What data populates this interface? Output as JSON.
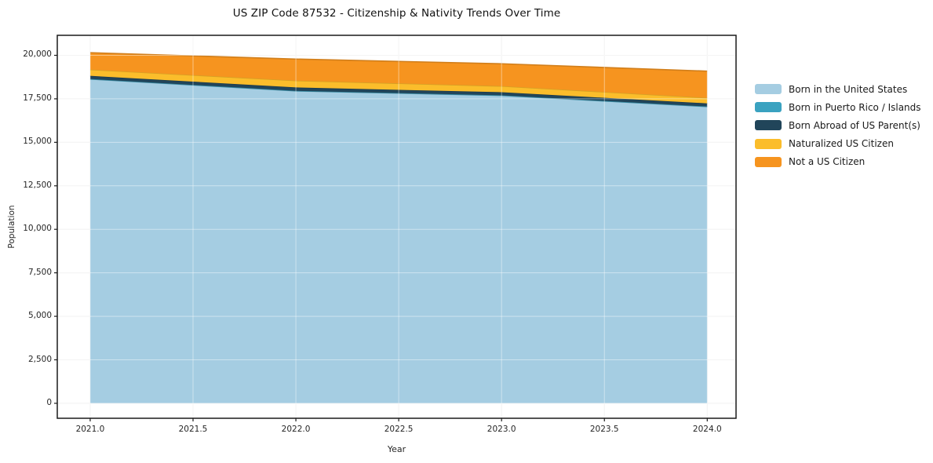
{
  "title": "US ZIP Code 87532 - Citizenship & Nativity Trends Over Time",
  "axes": {
    "xlabel": "Year",
    "ylabel": "Population",
    "xtick_labels": [
      "2021.0",
      "2021.5",
      "2022.0",
      "2022.5",
      "2023.0",
      "2023.5",
      "2024.0"
    ],
    "xtick_values": [
      2021.0,
      2021.5,
      2022.0,
      2022.5,
      2023.0,
      2023.5,
      2024.0
    ],
    "ytick_labels": [
      "0",
      "2,500",
      "5,000",
      "7,500",
      "10,000",
      "12,500",
      "15,000",
      "17,500",
      "20,000"
    ],
    "ytick_values": [
      0,
      2500,
      5000,
      7500,
      10000,
      12500,
      15000,
      17500,
      20000
    ]
  },
  "chart_data": {
    "type": "area",
    "stacked": true,
    "title": "US ZIP Code 87532 - Citizenship & Nativity Trends Over Time",
    "xlabel": "Year",
    "ylabel": "Population",
    "x": [
      2021,
      2022,
      2023,
      2024
    ],
    "series": [
      {
        "name": "Born in the United States",
        "color": "#A5CDE2",
        "values": [
          18630,
          17950,
          17690,
          17050
        ]
      },
      {
        "name": "Born in Puerto Rico / Islands",
        "color": "#3AA2C0",
        "values": [
          10,
          10,
          10,
          10
        ]
      },
      {
        "name": "Born Abroad of US Parent(s)",
        "color": "#21455A",
        "values": [
          180,
          195,
          180,
          180
        ]
      },
      {
        "name": "Naturalized US Citizen",
        "color": "#FBBD2B",
        "values": [
          360,
          390,
          350,
          315
        ]
      },
      {
        "name": "Not a US Citizen",
        "color": "#F6941F",
        "values": [
          970,
          1240,
          1285,
          1535
        ]
      }
    ],
    "stack_totals": [
      20150,
      19785,
      19515,
      19090
    ],
    "xlim": [
      2020.84,
      2024.14
    ],
    "ylim": [
      -860,
      21150
    ],
    "grid": true,
    "grid_color": "#ececec",
    "spine_color": "#1a1a1a",
    "legend_position": "right"
  }
}
